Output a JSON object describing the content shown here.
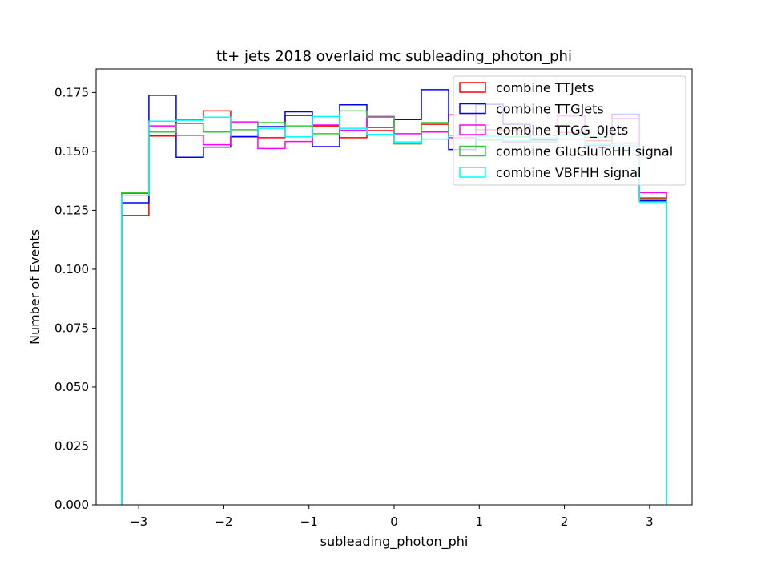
{
  "chart_data": {
    "type": "histogram-step",
    "title": "tt+ jets 2018 overlaid mc subleading_photon_phi",
    "xlabel": "subleading_photon_phi",
    "ylabel": "Number of Events",
    "xlim": [
      -3.5,
      3.5
    ],
    "ylim": [
      0,
      0.185
    ],
    "xticks": [
      -3,
      -2,
      -1,
      0,
      1,
      2,
      3
    ],
    "xtick_labels": [
      "−3",
      "−2",
      "−1",
      "0",
      "1",
      "2",
      "3"
    ],
    "yticks": [
      0,
      0.025,
      0.05,
      0.075,
      0.1,
      0.125,
      0.15,
      0.175
    ],
    "ytick_labels": [
      "0.000",
      "0.025",
      "0.050",
      "0.075",
      "0.100",
      "0.125",
      "0.150",
      "0.175"
    ],
    "grid": false,
    "legend_position": "top-right",
    "bin_range": [
      -3.2,
      3.2
    ],
    "series": [
      {
        "name": "combine TTJets",
        "color": "#ff0000",
        "values": [
          0.1228,
          0.1565,
          0.1635,
          0.1672,
          0.1568,
          0.1558,
          0.1652,
          0.1608,
          0.1558,
          0.1588,
          0.1532,
          0.1615,
          0.1655,
          0.1592,
          0.1588,
          0.1548,
          0.158,
          0.1545,
          0.1535,
          0.1302
        ]
      },
      {
        "name": "combine TTGJets",
        "color": "#0000ff",
        "values": [
          0.1282,
          0.1738,
          0.1475,
          0.1518,
          0.1562,
          0.1605,
          0.1668,
          0.152,
          0.1698,
          0.1602,
          0.1635,
          0.1762,
          0.1508,
          0.17,
          0.1615,
          0.1548,
          0.157,
          0.156,
          0.1658,
          0.129
        ]
      },
      {
        "name": "combine TTGG_0Jets",
        "color": "#ff00ff",
        "values": [
          0.1322,
          0.1608,
          0.1568,
          0.1528,
          0.1625,
          0.1512,
          0.1542,
          0.1612,
          0.159,
          0.1648,
          0.1575,
          0.1582,
          0.1558,
          0.1568,
          0.154,
          0.1568,
          0.165,
          0.1525,
          0.164,
          0.1325
        ]
      },
      {
        "name": "combine GluGluToHH signal",
        "color": "#33cc33",
        "values": [
          0.1325,
          0.1582,
          0.1618,
          0.1582,
          0.1592,
          0.1622,
          0.1608,
          0.1575,
          0.1672,
          0.1645,
          0.1532,
          0.1622,
          0.1568,
          0.1548,
          0.1562,
          0.154,
          0.1552,
          0.156,
          0.1525,
          0.1298
        ]
      },
      {
        "name": "combine VBFHH signal",
        "color": "#00ffff",
        "values": [
          0.1312,
          0.1628,
          0.1632,
          0.1645,
          0.1568,
          0.1598,
          0.1562,
          0.1648,
          0.1598,
          0.1572,
          0.154,
          0.1552,
          0.1568,
          0.1562,
          0.1545,
          0.1558,
          0.1572,
          0.153,
          0.1525,
          0.1285
        ]
      }
    ]
  }
}
